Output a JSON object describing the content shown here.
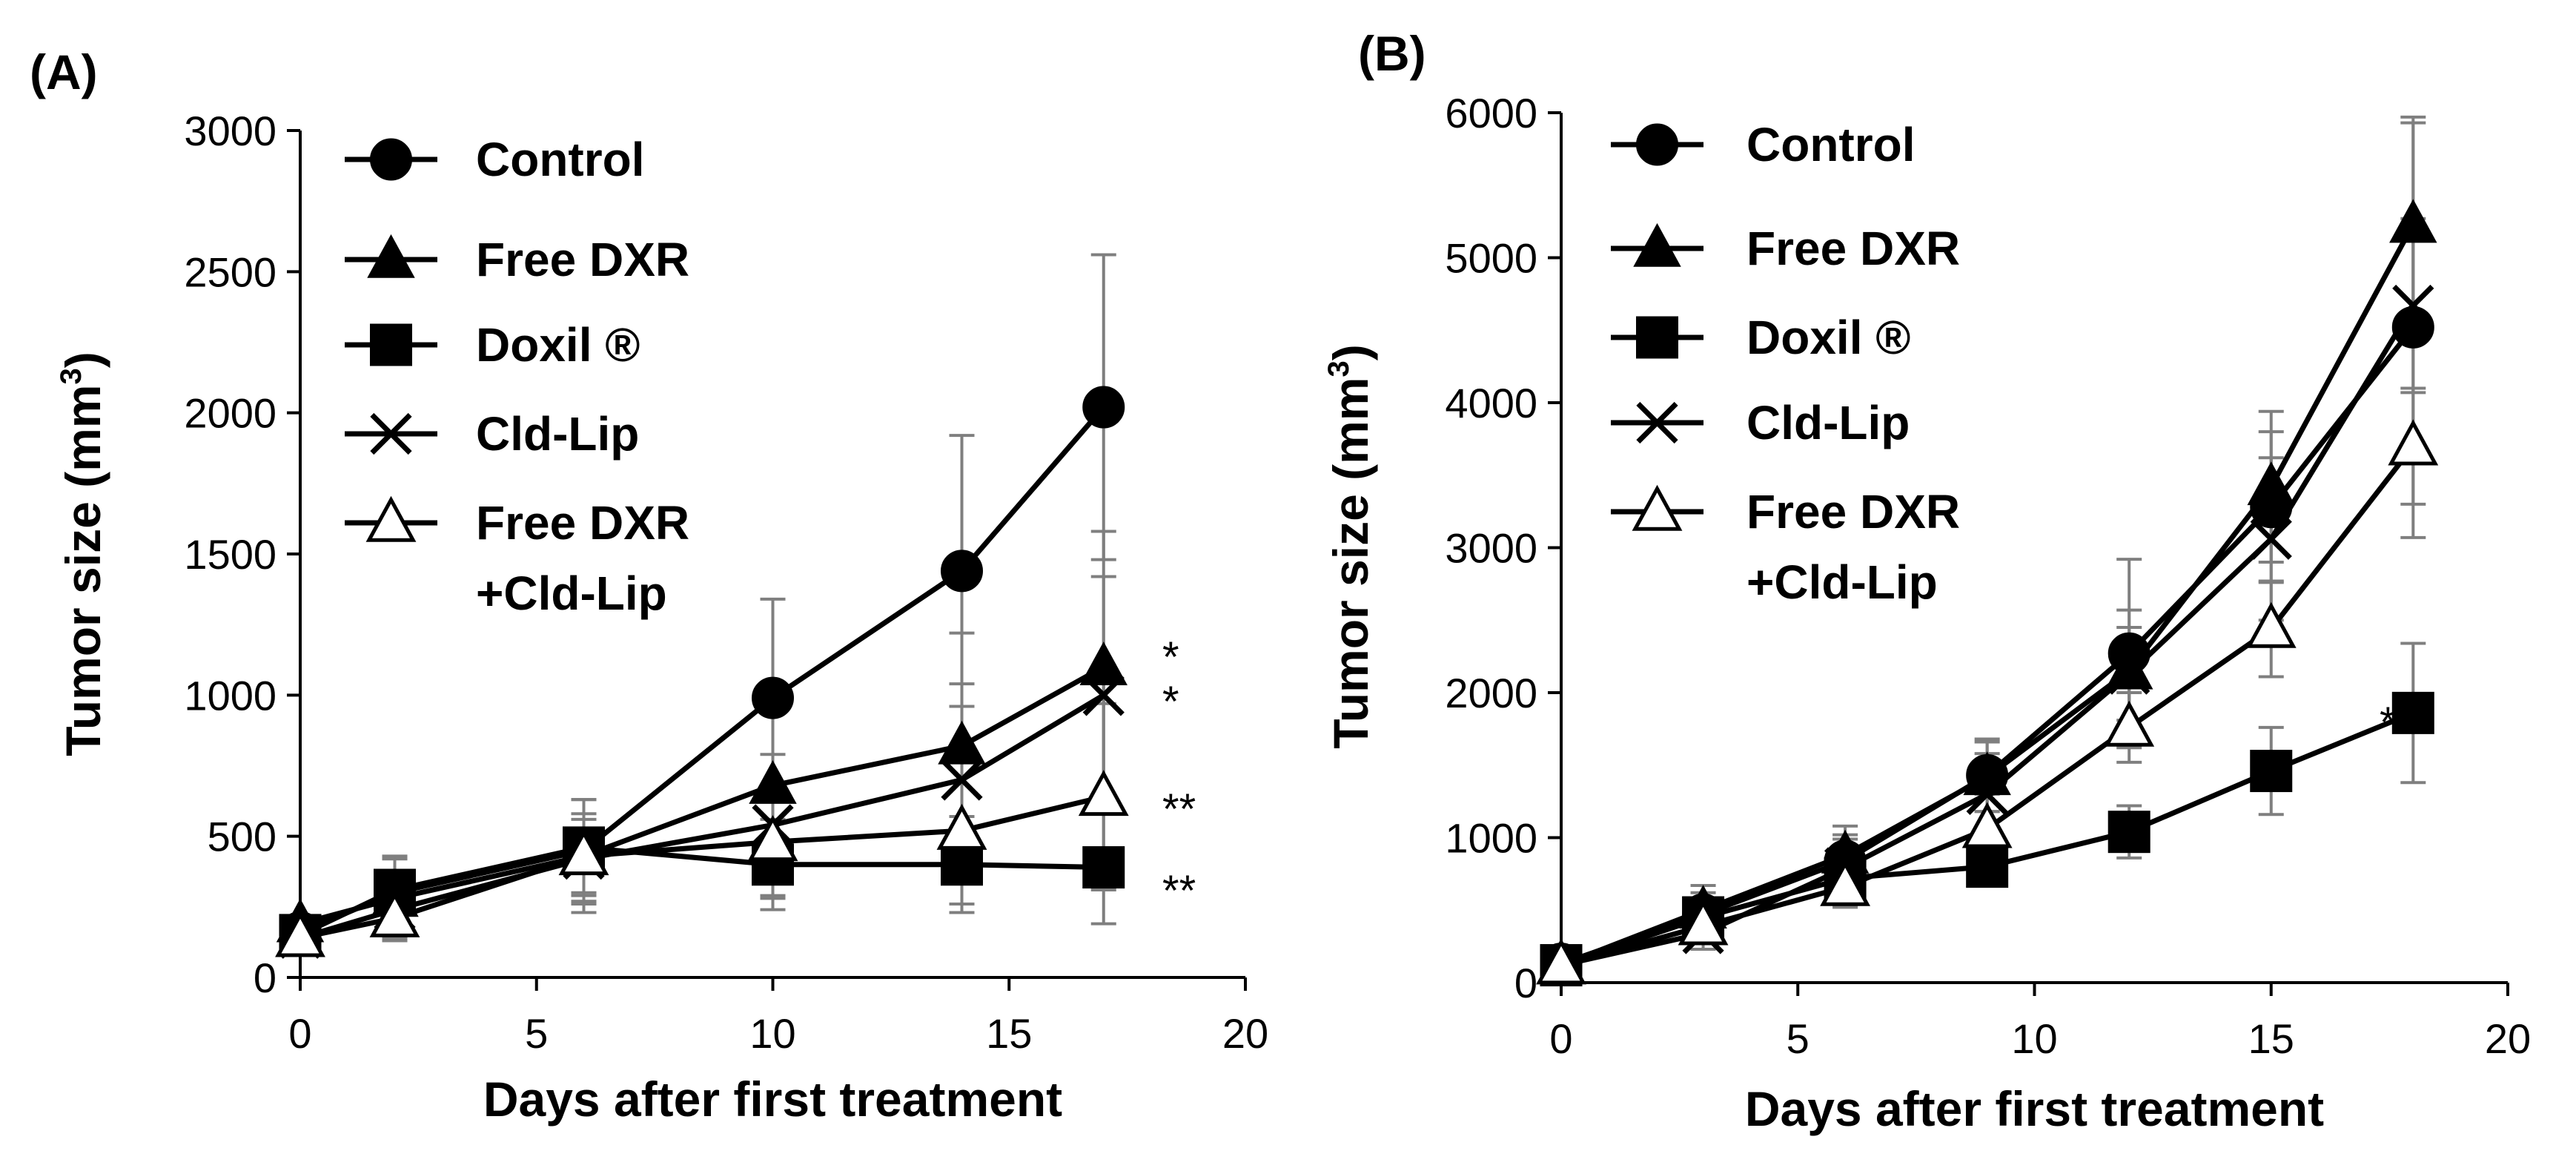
{
  "chart_data": [
    {
      "type": "line",
      "panel_label": "(A)",
      "xlabel": "Days after first treatment",
      "ylabel_prefix": "Tumor size (mm",
      "ylabel_sup": "3",
      "ylabel_suffix": ")",
      "xlim": [
        0,
        20
      ],
      "ylim": [
        0,
        3000
      ],
      "xticks": [
        0,
        5,
        10,
        15,
        20
      ],
      "yticks": [
        0,
        500,
        1000,
        1500,
        2000,
        2500,
        3000
      ],
      "x": [
        0,
        2,
        6,
        10,
        14,
        17
      ],
      "series": [
        {
          "name": "Control",
          "marker": "circle",
          "values": [
            160,
            300,
            450,
            990,
            1440,
            2020
          ],
          "errors": [
            null,
            120,
            180,
            350,
            480,
            540
          ]
        },
        {
          "name": "Free DXR",
          "marker": "triangle",
          "values": [
            190,
            280,
            430,
            680,
            820,
            1100
          ],
          "errors": [
            null,
            150,
            200,
            330,
            400,
            480
          ]
        },
        {
          "name": "Doxil ®",
          "marker": "square",
          "values": [
            150,
            310,
            460,
            400,
            400,
            390
          ],
          "errors": [
            null,
            110,
            170,
            160,
            170,
            200
          ]
        },
        {
          "name": "Cld-Lip",
          "marker": "cross",
          "values": [
            140,
            240,
            420,
            540,
            700,
            1000
          ],
          "errors": [
            null,
            100,
            160,
            250,
            340,
            420
          ]
        },
        {
          "name": "Free DXR\n+Cld-Lip",
          "legend_lines": [
            "Free DXR",
            "+Cld-Lip"
          ],
          "marker": "open-triangle",
          "values": [
            140,
            210,
            430,
            480,
            520,
            640
          ],
          "errors": [
            null,
            60,
            130,
            200,
            260,
            330
          ]
        }
      ],
      "significance": [
        {
          "label": "*",
          "y": 1150
        },
        {
          "label": "*",
          "y": 990
        },
        {
          "label": "**",
          "y": 610
        },
        {
          "label": "**",
          "y": 310
        }
      ]
    },
    {
      "type": "line",
      "panel_label": "(B)",
      "xlabel": "Days after first treatment",
      "ylabel_prefix": "Tumor size (mm",
      "ylabel_sup": "3",
      "ylabel_suffix": ")",
      "xlim": [
        0,
        20
      ],
      "ylim": [
        0,
        6000
      ],
      "xticks": [
        0,
        5,
        10,
        15,
        20
      ],
      "yticks": [
        0,
        1000,
        2000,
        3000,
        4000,
        5000,
        6000
      ],
      "x": [
        0,
        3,
        6,
        9,
        12,
        15,
        18
      ],
      "series": [
        {
          "name": "Control",
          "marker": "circle",
          "values": [
            130,
            470,
            840,
            1430,
            2270,
            3280,
            4520
          ],
          "errors": [
            null,
            150,
            180,
            250,
            650,
            520,
            1450
          ]
        },
        {
          "name": "Free DXR",
          "marker": "triangle",
          "values": [
            120,
            500,
            880,
            1420,
            2150,
            3420,
            5230
          ],
          "errors": [
            null,
            170,
            200,
            240,
            420,
            520,
            700
          ]
        },
        {
          "name": "Doxil ®",
          "marker": "square",
          "values": [
            120,
            450,
            720,
            800,
            1040,
            1460,
            1860
          ],
          "errors": [
            null,
            120,
            130,
            120,
            180,
            300,
            480
          ]
        },
        {
          "name": "Cld-Lip",
          "marker": "cross",
          "values": [
            120,
            340,
            790,
            1300,
            2130,
            3060,
            4670
          ],
          "errors": [
            null,
            110,
            200,
            280,
            320,
            560,
            600
          ]
        },
        {
          "name": "Free DXR\n+Cld-Lip",
          "legend_lines": [
            "Free DXR",
            "+Cld-Lip"
          ],
          "marker": "open-triangle",
          "values": [
            120,
            390,
            660,
            1060,
            1760,
            2440,
            3700
          ],
          "errors": [
            null,
            110,
            140,
            240,
            240,
            330,
            400
          ]
        }
      ],
      "significance": [
        {
          "label": "**",
          "y": 1840
        }
      ]
    }
  ]
}
